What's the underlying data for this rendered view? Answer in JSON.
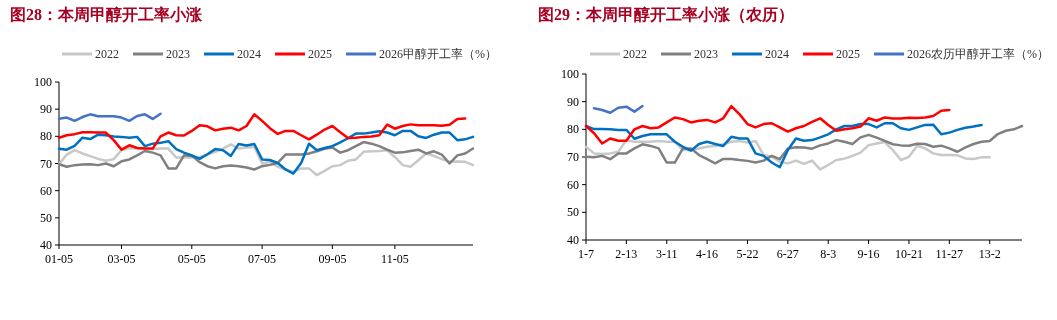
{
  "chart_data": [
    {
      "type": "line",
      "title": "图28：本周甲醇开工率小涨",
      "legend": "top",
      "categories": [
        "01-05",
        null,
        null,
        null,
        null,
        null,
        null,
        null,
        "03-05",
        null,
        null,
        null,
        null,
        null,
        null,
        null,
        null,
        "05-05",
        null,
        null,
        null,
        null,
        null,
        null,
        null,
        null,
        "07-05",
        null,
        null,
        null,
        null,
        null,
        null,
        null,
        null,
        "09-05",
        null,
        null,
        null,
        null,
        null,
        null,
        null,
        "11-05",
        null,
        null,
        null,
        null,
        null,
        null,
        null,
        null,
        null,
        null
      ],
      "ylim": [
        40,
        100
      ],
      "yticks": [
        40,
        50,
        60,
        70,
        80,
        90,
        100
      ],
      "series": [
        {
          "name": "2022",
          "color": "#c8c8c8",
          "values": [
            69.7,
            73.3,
            74.9,
            73.7,
            72.7,
            71.7,
            71.0,
            71.6,
            74.9,
            75.7,
            75.5,
            75.3,
            75.3,
            75.5,
            75.5,
            72.2,
            72.2,
            72.2,
            72.4,
            73.3,
            74.3,
            75.5,
            77.0,
            75.5,
            75.9,
            76.1,
            70.0,
            70.6,
            68.8,
            67.8,
            66.9,
            68.2,
            68.2,
            65.7,
            67.3,
            69.0,
            69.4,
            71.0,
            71.5,
            74.3,
            74.5,
            74.6,
            74.9,
            72.4,
            69.4,
            68.8,
            71.2,
            73.7,
            72.8,
            71.6,
            70.6,
            70.7,
            70.6,
            69.4
          ]
        },
        {
          "name": "2023",
          "color": "#808080",
          "values": [
            69.7,
            68.8,
            69.4,
            69.6,
            69.7,
            69.4,
            70.0,
            69.0,
            70.8,
            71.5,
            73.0,
            74.6,
            74.0,
            73.0,
            68.2,
            68.2,
            73.0,
            72.8,
            70.5,
            69.0,
            68.2,
            69.0,
            69.3,
            69.0,
            68.5,
            67.8,
            69.0,
            69.5,
            70.2,
            73.3,
            73.3,
            73.3,
            73.7,
            74.5,
            75.4,
            75.9,
            74.0,
            74.9,
            76.4,
            77.9,
            77.3,
            76.4,
            75.1,
            74.0,
            74.1,
            74.6,
            75.1,
            73.7,
            74.5,
            73.3,
            70.0,
            73.0,
            73.7,
            75.5
          ]
        },
        {
          "name": "2024",
          "color": "#0070c0",
          "values": [
            75.4,
            75.1,
            76.5,
            79.5,
            79.0,
            80.6,
            80.4,
            79.9,
            79.8,
            79.5,
            79.8,
            76.4,
            77.3,
            77.6,
            78.2,
            75.3,
            74.0,
            73.0,
            71.7,
            73.4,
            75.3,
            74.9,
            72.8,
            77.2,
            76.6,
            77.2,
            71.5,
            71.3,
            70.2,
            67.8,
            66.3,
            70.2,
            77.3,
            74.9,
            75.7,
            76.4,
            77.8,
            79.3,
            81.0,
            81.0,
            81.4,
            81.9,
            81.4,
            80.4,
            82.0,
            82.0,
            80.0,
            79.4,
            80.6,
            81.4,
            81.4,
            78.6,
            78.9,
            79.8
          ]
        },
        {
          "name": "2025",
          "color": "#ff0000",
          "values": [
            79.5,
            80.4,
            80.8,
            81.5,
            81.5,
            81.4,
            81.4,
            78.6,
            75.1,
            76.7,
            75.7,
            75.5,
            75.5,
            80.0,
            81.4,
            80.4,
            80.3,
            82.0,
            84.1,
            83.7,
            82.2,
            82.8,
            83.2,
            82.2,
            83.8,
            88.1,
            85.7,
            83.0,
            80.9,
            82.0,
            82.0,
            80.4,
            78.9,
            80.6,
            82.5,
            83.8,
            81.5,
            79.4,
            79.5,
            79.8,
            79.9,
            80.4,
            84.3,
            82.8,
            83.8,
            84.4,
            84.1,
            84.1,
            84.1,
            83.9,
            84.3,
            86.4,
            86.6,
            null
          ]
        },
        {
          "name": "2026甲醇开工率（%）",
          "color": "#4472c4",
          "values": [
            86.5,
            86.9,
            85.7,
            87.1,
            88.1,
            87.4,
            87.4,
            87.4,
            86.9,
            85.7,
            87.5,
            88.1,
            86.4,
            88.3,
            null,
            null,
            null,
            null,
            null,
            null,
            null,
            null,
            null,
            null,
            null,
            null,
            null,
            null,
            null,
            null,
            null,
            null,
            null,
            null,
            null,
            null,
            null,
            null,
            null,
            null,
            null,
            null,
            null,
            null,
            null,
            null,
            null,
            null,
            null,
            null,
            null,
            null,
            null,
            null
          ]
        }
      ]
    },
    {
      "type": "line",
      "title": "图29：本周甲醇开工率小涨（农历）",
      "legend": "top",
      "categories": [
        "1-7",
        null,
        null,
        null,
        null,
        "2-13",
        null,
        null,
        null,
        null,
        "3-11",
        null,
        null,
        null,
        null,
        "4-16",
        null,
        null,
        null,
        null,
        "5-22",
        null,
        null,
        null,
        null,
        "6-27",
        null,
        null,
        null,
        null,
        "8-3",
        null,
        null,
        null,
        null,
        "9-16",
        null,
        null,
        null,
        null,
        "10-21",
        null,
        null,
        null,
        null,
        "11-27",
        null,
        null,
        null,
        null,
        "13-2",
        null,
        null,
        null,
        null
      ],
      "ylim": [
        40,
        100
      ],
      "yticks": [
        40,
        50,
        60,
        70,
        80,
        90,
        100
      ],
      "series": [
        {
          "name": "2022",
          "color": "#c8c8c8",
          "values": [
            73.7,
            71.3,
            71.1,
            71.3,
            71.9,
            76.1,
            75.5,
            75.5,
            75.5,
            75.8,
            75.5,
            75.5,
            72.5,
            72.5,
            73.1,
            73.7,
            74.0,
            74.6,
            75.5,
            75.8,
            75.2,
            75.8,
            70.7,
            70.1,
            68.3,
            67.7,
            68.7,
            67.5,
            68.7,
            65.5,
            67.1,
            68.9,
            69.4,
            70.4,
            71.6,
            74.3,
            74.9,
            75.4,
            72.5,
            68.9,
            70.1,
            74.0,
            73.1,
            71.3,
            70.7,
            70.7,
            70.6,
            69.5,
            69.3,
            69.9,
            69.9,
            null,
            null,
            null,
            null
          ]
        },
        {
          "name": "2023",
          "color": "#808080",
          "values": [
            70.1,
            69.9,
            70.4,
            69.2,
            71.3,
            71.3,
            73.1,
            74.6,
            74.0,
            73.1,
            68.0,
            68.0,
            73.1,
            73.1,
            70.7,
            69.2,
            67.7,
            69.3,
            69.3,
            68.9,
            68.6,
            68.0,
            68.7,
            70.4,
            69.2,
            73.1,
            73.5,
            73.4,
            73.0,
            74.2,
            74.9,
            76.1,
            75.5,
            74.7,
            77.1,
            78.0,
            77.0,
            75.8,
            74.6,
            74.2,
            74.1,
            74.8,
            74.7,
            73.7,
            74.1,
            73.1,
            71.9,
            73.5,
            74.7,
            75.5,
            75.8,
            78.3,
            79.5,
            80.0,
            81.2
          ]
        },
        {
          "name": "2024",
          "color": "#0070c0",
          "values": [
            81.2,
            80.1,
            80.1,
            80.0,
            79.8,
            79.8,
            76.6,
            77.6,
            78.2,
            78.2,
            78.2,
            75.5,
            73.7,
            72.3,
            74.7,
            75.5,
            74.7,
            74.0,
            77.3,
            76.7,
            76.7,
            71.3,
            70.4,
            68.0,
            66.3,
            72.5,
            76.7,
            75.9,
            76.1,
            77.1,
            78.2,
            80.0,
            81.2,
            81.2,
            81.9,
            81.9,
            80.7,
            82.2,
            82.2,
            80.4,
            79.8,
            80.7,
            81.6,
            81.7,
            78.2,
            78.8,
            79.8,
            80.6,
            81.0,
            81.6,
            null,
            null,
            null,
            null,
            null
          ]
        },
        {
          "name": "2025",
          "color": "#ff0000",
          "values": [
            81.2,
            78.6,
            74.9,
            76.7,
            75.9,
            75.9,
            80.0,
            81.2,
            80.4,
            80.7,
            82.5,
            84.3,
            83.7,
            82.5,
            83.1,
            83.4,
            82.5,
            84.0,
            88.4,
            85.5,
            81.9,
            80.7,
            81.9,
            82.2,
            80.7,
            79.2,
            80.4,
            81.2,
            82.7,
            84.0,
            81.6,
            79.5,
            80.0,
            80.4,
            81.0,
            84.0,
            83.1,
            84.3,
            83.9,
            83.9,
            84.2,
            84.1,
            84.3,
            84.8,
            86.7,
            87.0,
            null,
            null,
            null,
            null,
            null,
            null,
            null,
            null,
            null
          ]
        },
        {
          "name": "2026农历甲醇开工率（%）",
          "color": "#4472c4",
          "values": [
            null,
            87.6,
            87.0,
            86.0,
            87.8,
            88.2,
            86.4,
            88.4,
            null,
            null,
            null,
            null,
            null,
            null,
            null,
            null,
            null,
            null,
            null,
            null,
            null,
            null,
            null,
            null,
            null,
            null,
            null,
            null,
            null,
            null,
            null,
            null,
            null,
            null,
            null,
            null,
            null,
            null,
            null,
            null,
            null,
            null,
            null,
            null,
            null,
            null,
            null,
            null,
            null,
            null,
            null,
            null,
            null,
            null,
            null
          ]
        }
      ]
    }
  ]
}
